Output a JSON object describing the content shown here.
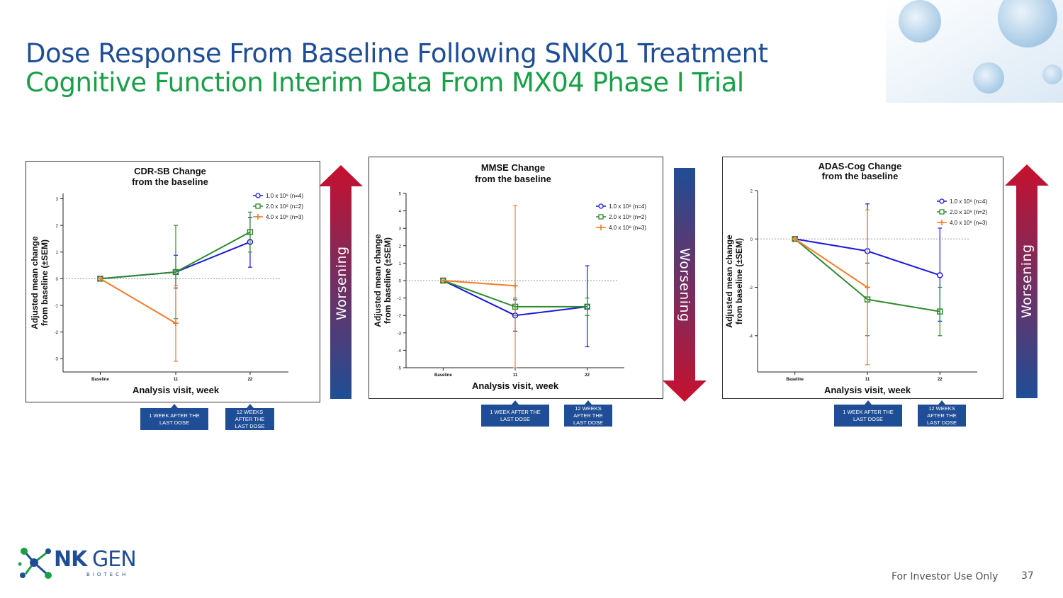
{
  "header": {
    "title_line1": "Dose Response From Baseline Following SNK01 Treatment",
    "title_line2": "Cognitive Function Interim Data From MX04 Phase I Trial"
  },
  "colors": {
    "blue": "#1f4e96",
    "green": "#18a047",
    "red": "#c8102e",
    "series_blue": "#1a1adb",
    "series_green": "#2e8b2e",
    "series_orange": "#f07d2a"
  },
  "arrows": {
    "label": "Worsening"
  },
  "chart_data": [
    {
      "type": "line",
      "title": "CDR-SB Change",
      "subtitle": "from the baseline",
      "xlabel": "Analysis visit, week",
      "ylabel_line1": "Adjusted mean change",
      "ylabel_line2": "from baseline (±SEM)",
      "categories": [
        "Baseline",
        "11",
        "22"
      ],
      "ylim": [
        -3.5,
        3.2
      ],
      "yticks": [
        -3,
        -2,
        -1,
        0,
        1,
        2,
        3
      ],
      "legend_position": "top-right",
      "series": [
        {
          "name": "1.0 x 10⁹ (n=4)",
          "marker": "circle",
          "color": "#1a1adb",
          "values": [
            0,
            0.25,
            1.38
          ],
          "err_low": [
            0,
            -0.35,
            0.43
          ],
          "err_high": [
            0,
            0.88,
            2.3
          ]
        },
        {
          "name": "2.0 x 10⁹ (n=2)",
          "marker": "square",
          "color": "#2e8b2e",
          "values": [
            0,
            0.25,
            1.75
          ],
          "err_low": [
            0,
            -1.5,
            1.0
          ],
          "err_high": [
            0,
            2.0,
            2.5
          ]
        },
        {
          "name": "4.0 x 10⁹ (n=3)",
          "marker": "plus",
          "color": "#f07d2a",
          "values": [
            0,
            -1.67,
            null
          ],
          "err_low": [
            0,
            -3.1,
            null
          ],
          "err_high": [
            0,
            -0.25,
            null
          ]
        }
      ],
      "annotations": [
        "1 WEEK AFTER THE LAST DOSE",
        "12 WEEKS AFTER THE LAST DOSE"
      ]
    },
    {
      "type": "line",
      "title": "MMSE Change",
      "subtitle": "from the baseline",
      "xlabel": "Analysis visit, week",
      "ylabel_line1": "Adjusted mean change",
      "ylabel_line2": "from baseline (±SEM)",
      "categories": [
        "Baseline",
        "11",
        "22"
      ],
      "ylim": [
        -5,
        5
      ],
      "yticks": [
        -5,
        -4,
        -3,
        -2,
        -1,
        0,
        1,
        2,
        3,
        4,
        5
      ],
      "legend_position": "top-right",
      "series": [
        {
          "name": "1.0 x 10⁹ (n=4)",
          "marker": "circle",
          "color": "#1a1adb",
          "values": [
            0,
            -2.0,
            -1.5
          ],
          "err_low": [
            0,
            -2.9,
            -3.8
          ],
          "err_high": [
            0,
            -1.1,
            0.85
          ]
        },
        {
          "name": "2.0 x 10⁹ (n=2)",
          "marker": "square",
          "color": "#2e8b2e",
          "values": [
            0,
            -1.5,
            -1.5
          ],
          "err_low": [
            0,
            -2.0,
            -2.0
          ],
          "err_high": [
            0,
            -1.0,
            -1.0
          ]
        },
        {
          "name": "4.0 x 10⁹ (n=3)",
          "marker": "plus",
          "color": "#f07d2a",
          "values": [
            0,
            -0.3,
            null
          ],
          "err_low": [
            0,
            -5,
            null
          ],
          "err_high": [
            0,
            4.3,
            null
          ]
        }
      ],
      "annotations": [
        "1 WEEK AFTER THE LAST DOSE",
        "12 WEEKS AFTER THE LAST DOSE"
      ]
    },
    {
      "type": "line",
      "title": "ADAS-Cog Change",
      "subtitle": "from the baseline",
      "xlabel": "Analysis visit, week",
      "ylabel_line1": "Adjusted mean change",
      "ylabel_line2": "from baseline (±SEM)",
      "categories": [
        "Baseline",
        "11",
        "22"
      ],
      "ylim": [
        -5.5,
        2
      ],
      "yticks": [
        -4,
        -2,
        0,
        2
      ],
      "legend_position": "top-right",
      "series": [
        {
          "name": "1.0 x 10⁹ (n=4)",
          "marker": "circle",
          "color": "#1a1adb",
          "values": [
            0,
            -0.5,
            -1.5
          ],
          "err_low": [
            0,
            -1.0,
            -3.4
          ],
          "err_high": [
            0,
            1.45,
            0.45
          ]
        },
        {
          "name": "2.0 x 10⁹ (n=2)",
          "marker": "square",
          "color": "#2e8b2e",
          "values": [
            0,
            -2.5,
            -3.0
          ],
          "err_low": [
            0,
            -4.0,
            -4.0
          ],
          "err_high": [
            0,
            -1.0,
            -2.0
          ]
        },
        {
          "name": "4.0 x 10⁹ (n=3)",
          "marker": "plus",
          "color": "#f07d2a",
          "values": [
            0,
            -2.0,
            null
          ],
          "err_low": [
            0,
            -5.2,
            null
          ],
          "err_high": [
            0,
            1.2,
            null
          ]
        }
      ],
      "annotations": [
        "1 WEEK AFTER THE LAST DOSE",
        "12 WEEKS AFTER THE LAST DOSE"
      ]
    }
  ],
  "logo": {
    "name_bold": "NK",
    "name_light": "GEN",
    "sub": "BIOTECH"
  },
  "footer": {
    "text": "For Investor Use Only",
    "page": "37"
  }
}
